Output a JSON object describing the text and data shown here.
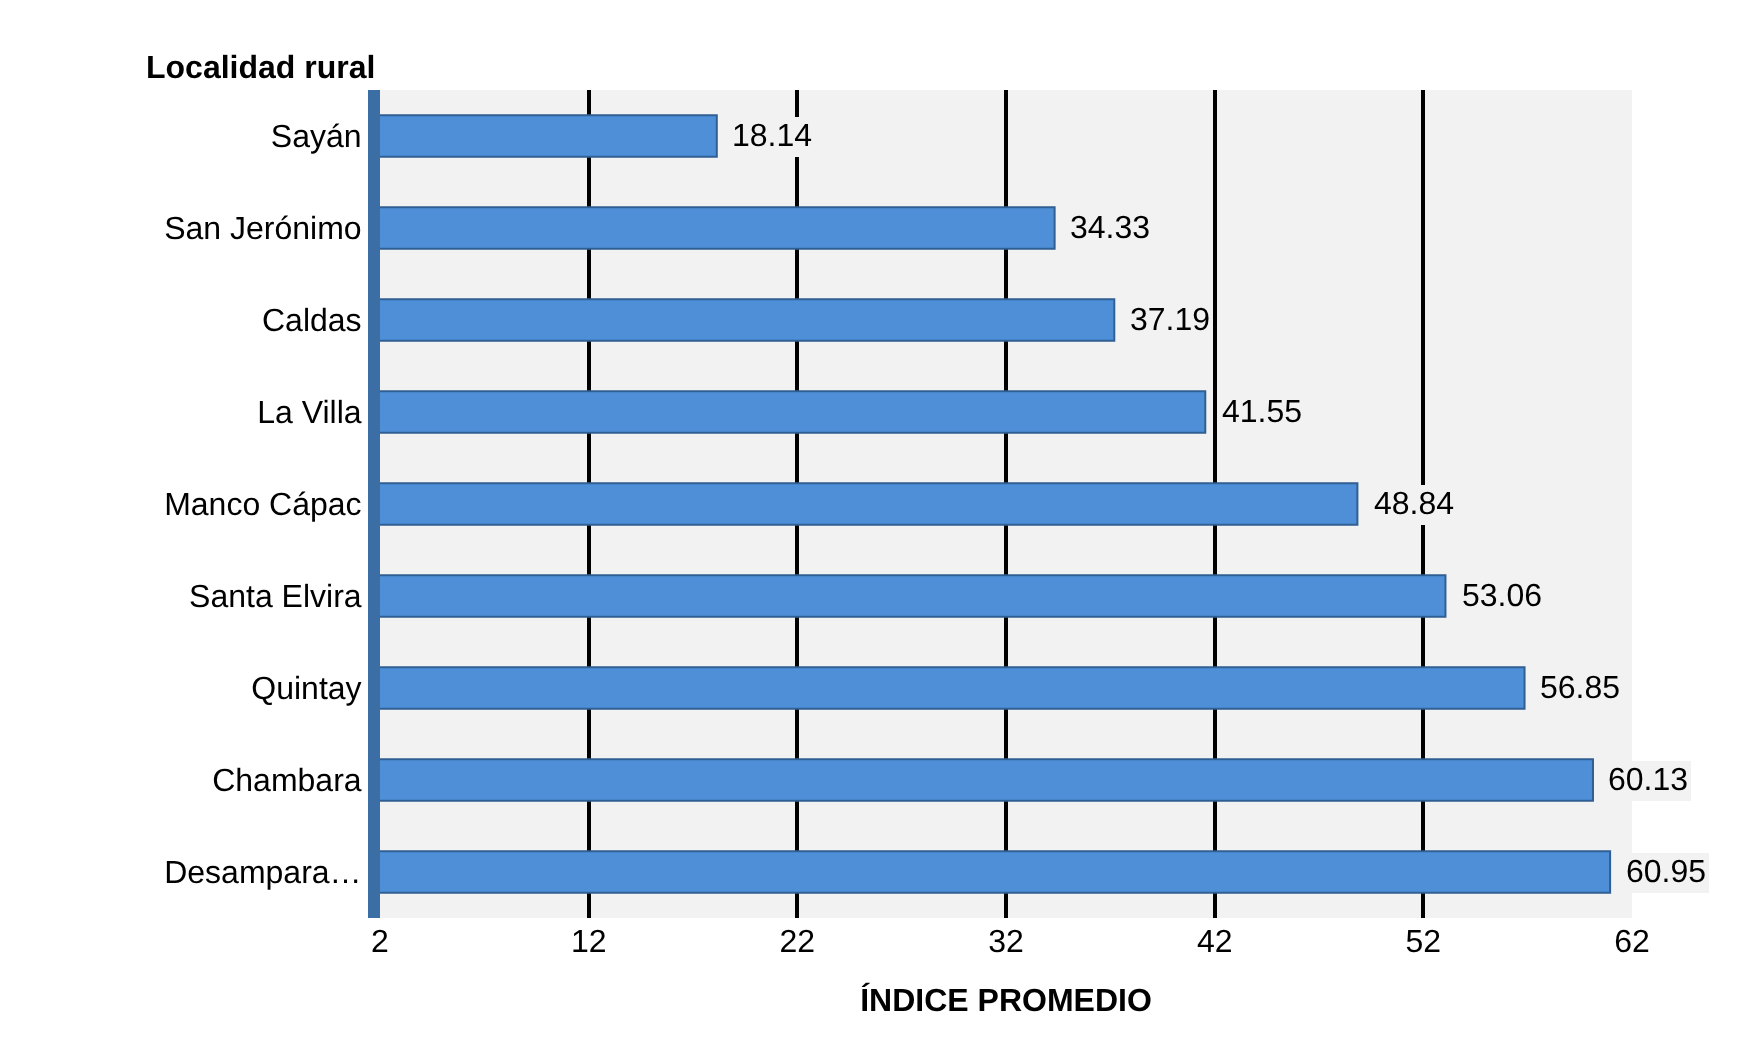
{
  "chart_data": {
    "type": "bar",
    "orientation": "horizontal",
    "ylabel": "Localidad rural",
    "xlabel": "ÍNDICE PROMEDIO",
    "categories": [
      "Sayán",
      "San Jerónimo",
      "Caldas",
      "La Villa",
      "Manco Cápac",
      "Santa Elvira",
      "Quintay",
      "Chambara",
      "Desampara…"
    ],
    "values": [
      18.14,
      34.33,
      37.19,
      41.55,
      48.84,
      53.06,
      56.85,
      60.13,
      60.95
    ],
    "color": "#4f8fd8",
    "data_labels": true,
    "xlim": [
      2,
      62
    ],
    "xticks": [
      2,
      12,
      22,
      32,
      42,
      52,
      62
    ],
    "grid": "x",
    "legend": false
  }
}
